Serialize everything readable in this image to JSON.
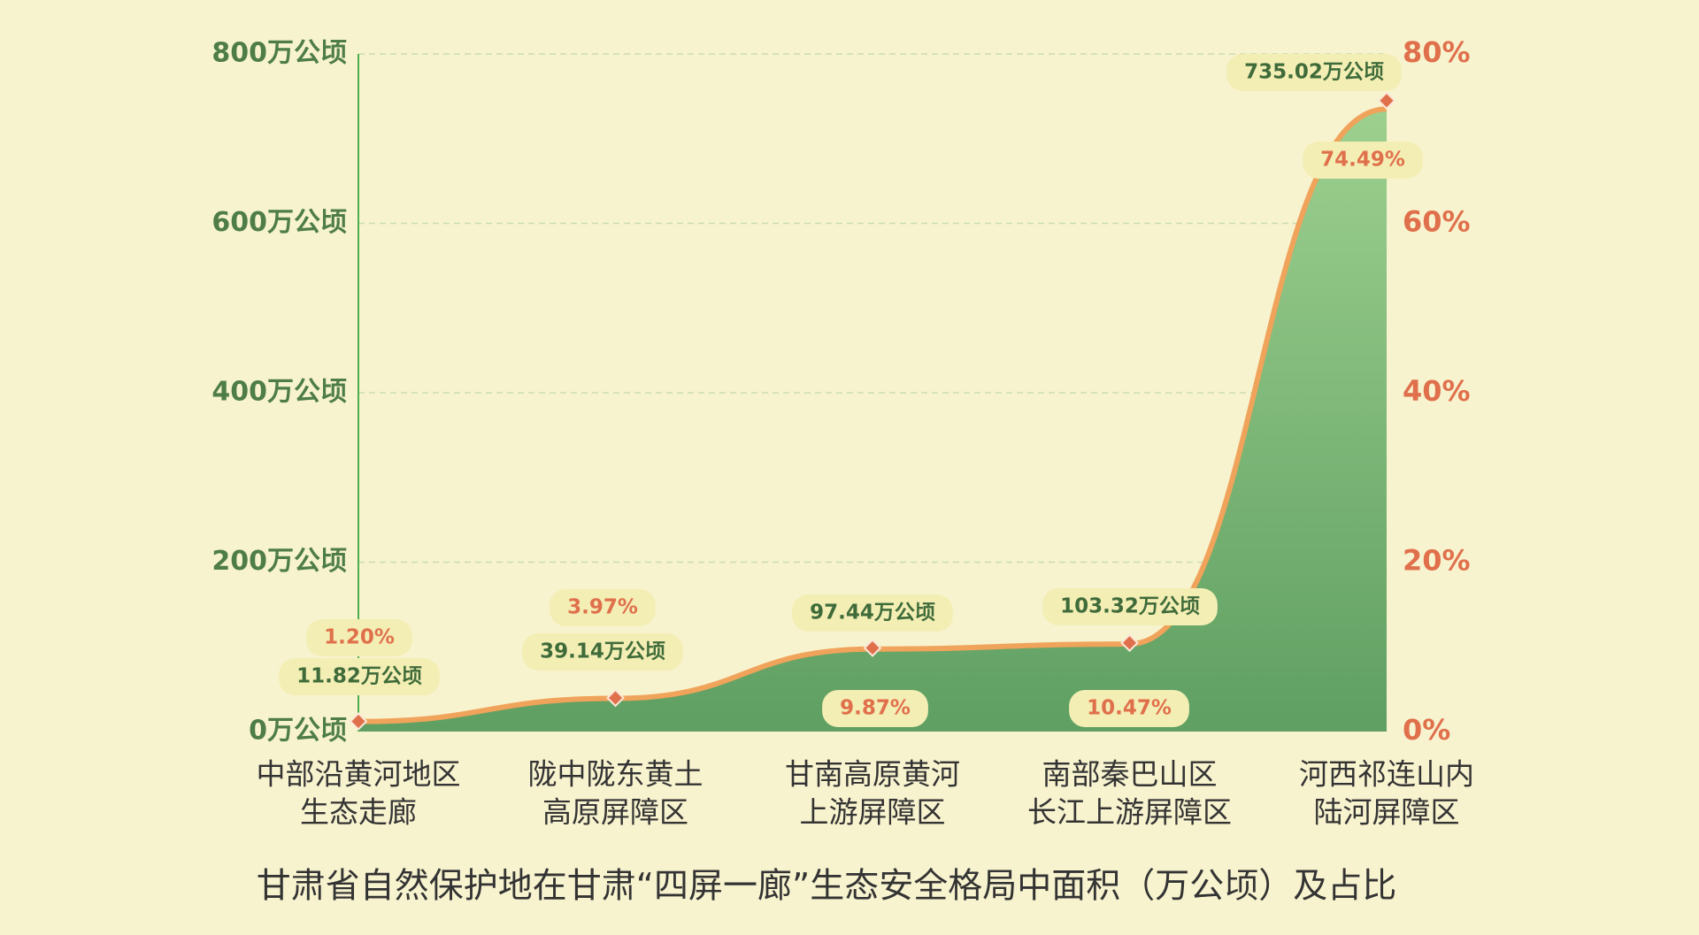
{
  "chart_data": {
    "type": "area",
    "title": "甘肃省自然保护地在甘肃“四屏一廊”生态安全格局中面积（万公顷）及占比",
    "categories": [
      [
        "中部沿黄河地区",
        "生态走廊"
      ],
      [
        "陇中陇东黄土",
        "高原屏障区"
      ],
      [
        "甘南高原黄河",
        "上游屏障区"
      ],
      [
        "南部秦巴山区",
        "长江上游屏障区"
      ],
      [
        "河西祁连山内",
        "陆河屏障区"
      ]
    ],
    "series": [
      {
        "color": "#4f9a55",
        "values": [
          11.82,
          39.14,
          97.44,
          103.32,
          735.02
        ],
        "value_labels": [
          "11.82万公顷",
          "39.14万公顷",
          "97.44万公顷",
          "103.32万公顷",
          "735.02万公顷"
        ]
      },
      {
        "color": "#e0704c",
        "axis": "y2",
        "values": [
          1.2,
          3.97,
          9.87,
          10.47,
          74.49
        ],
        "value_labels": [
          "1.20%",
          "3.97%",
          "9.87%",
          "10.47%",
          "74.49%"
        ]
      }
    ],
    "ylim": [
      0,
      800
    ],
    "yticks": [
      {
        "value": 0,
        "label": "0万公顷"
      },
      {
        "value": 200,
        "label": "200万公顷"
      },
      {
        "value": 400,
        "label": "400万公顷"
      },
      {
        "value": 600,
        "label": "600万公顷"
      },
      {
        "value": 800,
        "label": "800万公顷"
      }
    ],
    "y2lim": [
      0,
      80
    ],
    "y2ticks": [
      {
        "value": 0,
        "label": "0%"
      },
      {
        "value": 20,
        "label": "20%"
      },
      {
        "value": 40,
        "label": "40%"
      },
      {
        "value": 60,
        "label": "60%"
      },
      {
        "value": 80,
        "label": "80%"
      }
    ],
    "grid": true
  }
}
